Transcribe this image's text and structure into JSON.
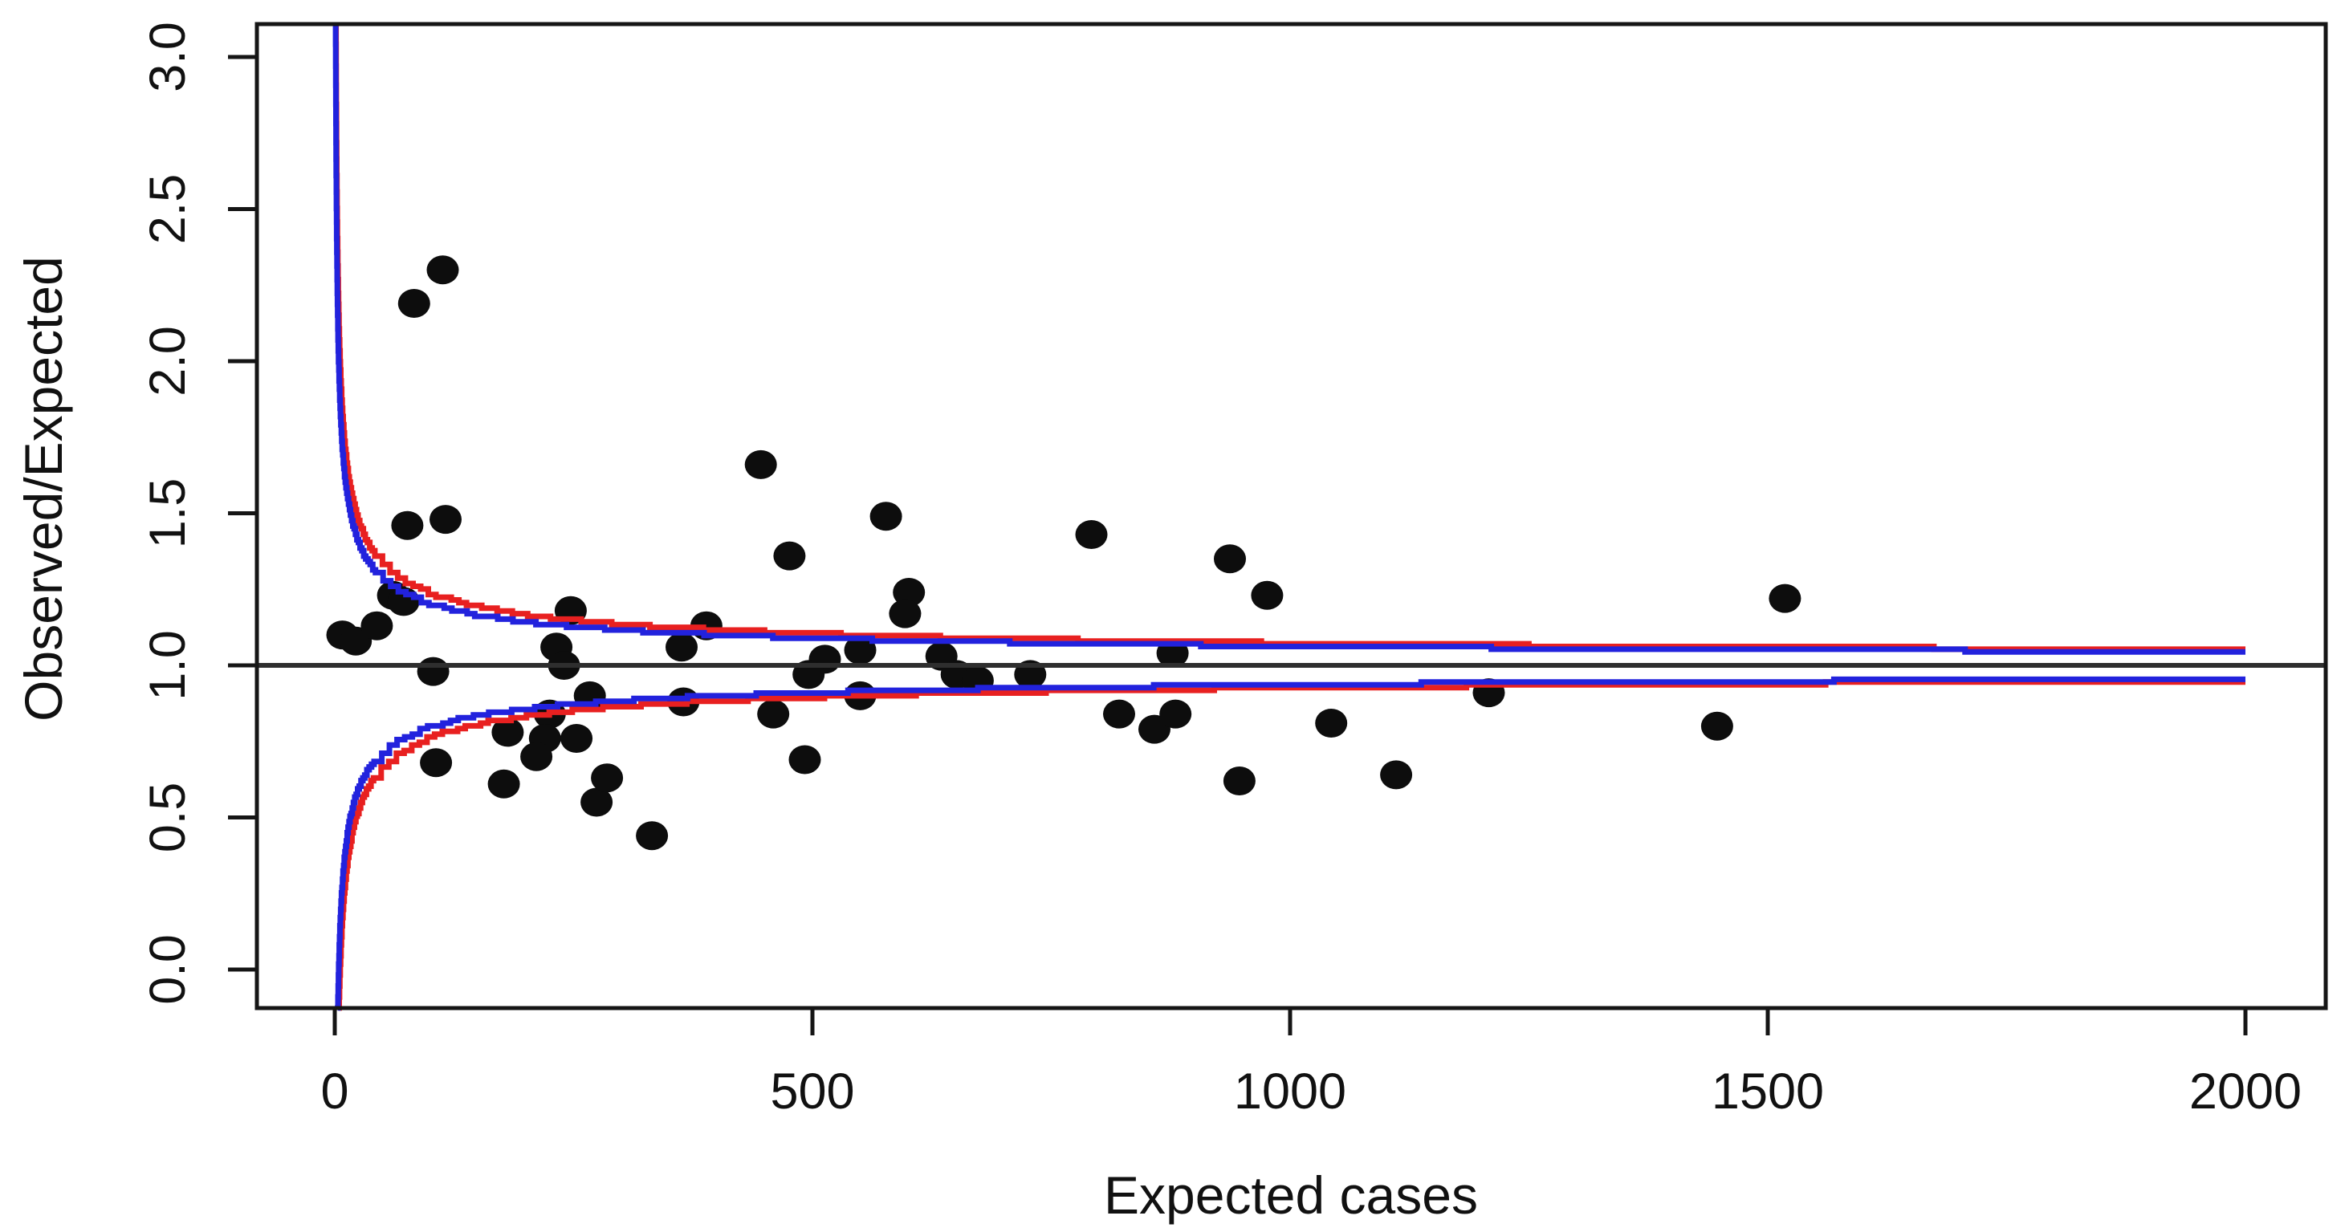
{
  "chart_data": {
    "type": "scatter",
    "title": "",
    "xlabel": "Expected cases",
    "ylabel": "Observed/Expected",
    "x_ticks": [
      {
        "v": 0,
        "label": "0"
      },
      {
        "v": 500,
        "label": "500"
      },
      {
        "v": 1000,
        "label": "1000"
      },
      {
        "v": 1500,
        "label": "1500"
      },
      {
        "v": 2000,
        "label": "2000"
      }
    ],
    "y_ticks": [
      {
        "v": 0.0,
        "label": "0.0"
      },
      {
        "v": 0.5,
        "label": "0.5"
      },
      {
        "v": 1.0,
        "label": "1.0"
      },
      {
        "v": 1.5,
        "label": "1.5"
      },
      {
        "v": 2.0,
        "label": "2.0"
      },
      {
        "v": 2.5,
        "label": "2.5"
      },
      {
        "v": 3.0,
        "label": "3.0"
      }
    ],
    "xlim": [
      -83,
      2084
    ],
    "ylim": [
      -0.13,
      3.11
    ],
    "grid": false,
    "legend_position": "none",
    "reference_line_y": 1.0,
    "control_limit_curves": [
      {
        "id": "blue-inner-limits",
        "color": "#2222dd",
        "k_over_sqrt_E": 2.0,
        "x_end": 2000,
        "value_at_end_upper": 1.045,
        "value_at_end_lower": 0.955
      },
      {
        "id": "red-outer-limits",
        "color": "#e82020",
        "k_over_sqrt_E": 2.35,
        "x_end": 2000,
        "value_at_end_upper": 1.053,
        "value_at_end_lower": 0.947
      }
    ],
    "points": [
      [
        113,
        2.3
      ],
      [
        83,
        2.19
      ],
      [
        76,
        1.46
      ],
      [
        116,
        1.48
      ],
      [
        446,
        1.66
      ],
      [
        577,
        1.49
      ],
      [
        476,
        1.36
      ],
      [
        792,
        1.43
      ],
      [
        937,
        1.35
      ],
      [
        976,
        1.23
      ],
      [
        601,
        1.24
      ],
      [
        597,
        1.17
      ],
      [
        247,
        1.18
      ],
      [
        389,
        1.13
      ],
      [
        363,
        1.06
      ],
      [
        232,
        1.06
      ],
      [
        240,
        1.0
      ],
      [
        8,
        1.1
      ],
      [
        22,
        1.08
      ],
      [
        44,
        1.13
      ],
      [
        61,
        1.23
      ],
      [
        72,
        1.21
      ],
      [
        103,
        0.98
      ],
      [
        513,
        1.02
      ],
      [
        496,
        0.97
      ],
      [
        550,
        1.05
      ],
      [
        635,
        1.03
      ],
      [
        651,
        0.97
      ],
      [
        673,
        0.95
      ],
      [
        728,
        0.97
      ],
      [
        877,
        1.04
      ],
      [
        1518,
        1.22
      ],
      [
        1208,
        0.91
      ],
      [
        550,
        0.9
      ],
      [
        365,
        0.88
      ],
      [
        459,
        0.84
      ],
      [
        492,
        0.69
      ],
      [
        821,
        0.84
      ],
      [
        858,
        0.79
      ],
      [
        880,
        0.84
      ],
      [
        1043,
        0.81
      ],
      [
        947,
        0.62
      ],
      [
        1111,
        0.64
      ],
      [
        1447,
        0.8
      ],
      [
        181,
        0.78
      ],
      [
        225,
        0.84
      ],
      [
        220,
        0.76
      ],
      [
        211,
        0.7
      ],
      [
        253,
        0.76
      ],
      [
        267,
        0.9
      ],
      [
        106,
        0.68
      ],
      [
        177,
        0.61
      ],
      [
        274,
        0.55
      ],
      [
        285,
        0.63
      ],
      [
        332,
        0.44
      ]
    ]
  },
  "style": {
    "background": "#ffffff",
    "point_color": "#0d0d0d",
    "box_color": "#151515",
    "reference_line_color": "#2e2e2e",
    "blue_curve_color": "#2222dd",
    "red_curve_color": "#e82020",
    "text_color": "#111111"
  }
}
